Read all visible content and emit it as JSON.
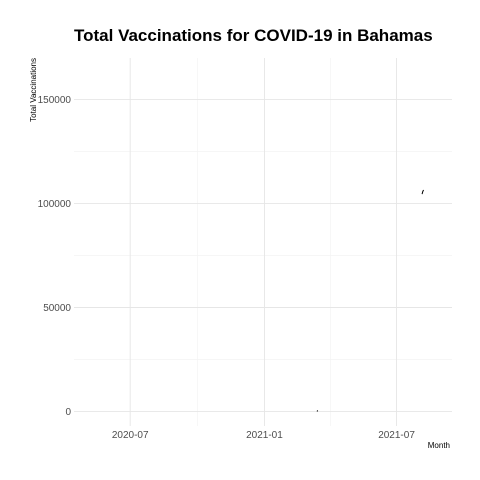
{
  "chart_data": {
    "type": "line",
    "title": "Total Vaccinations for COVID-19 in Bahamas",
    "xlabel": "Month",
    "ylabel": "Total Vaccinations",
    "x_ticks": [
      "2020-07",
      "2021-01",
      "2021-07"
    ],
    "y_ticks": [
      "0",
      "50000",
      "100000",
      "150000"
    ],
    "xlim": [
      "2020-04-15",
      "2021-09-15"
    ],
    "ylim": [
      -7000,
      170000
    ],
    "grid": true,
    "series": [
      {
        "x": [
          "2021-03-14",
          "2021-03-15",
          "2021-08-05",
          "2021-08-06",
          "2021-08-07"
        ],
        "y": [
          0,
          500,
          104500,
          105800,
          106500
        ]
      }
    ]
  }
}
